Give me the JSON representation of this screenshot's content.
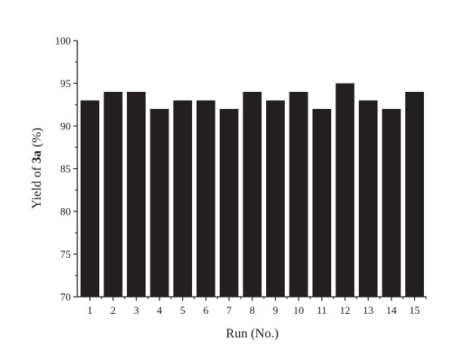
{
  "chart_data": {
    "type": "bar",
    "categories": [
      "1",
      "2",
      "3",
      "4",
      "5",
      "6",
      "7",
      "8",
      "9",
      "10",
      "11",
      "12",
      "13",
      "14",
      "15"
    ],
    "values": [
      93,
      94,
      94,
      92,
      93,
      93,
      92,
      94,
      93,
      94,
      92,
      95,
      93,
      92,
      94
    ],
    "xlabel": "Run (No.)",
    "ylabel_prefix": "Yield of ",
    "ylabel_bold": "3a",
    "ylabel_suffix": " (%)",
    "ylim": [
      70,
      100
    ],
    "yticks": [
      "70",
      "75",
      "80",
      "85",
      "90",
      "95",
      "100"
    ],
    "grid": false,
    "bar_color": "#231f20"
  }
}
